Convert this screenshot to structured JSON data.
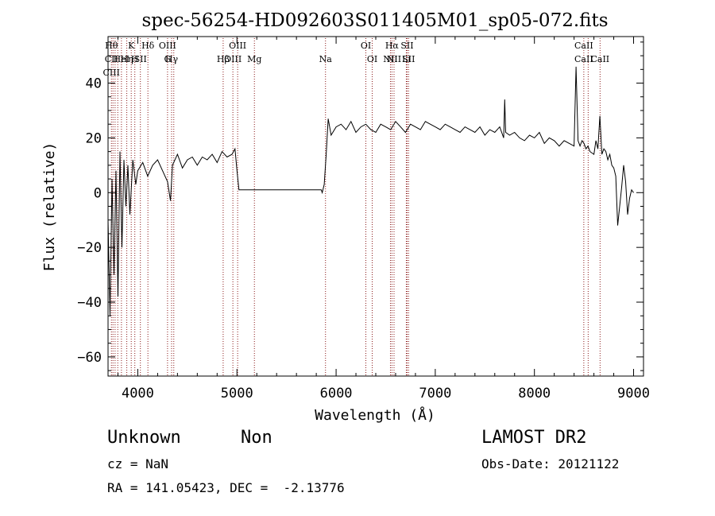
{
  "chart_data": {
    "type": "line",
    "title": "spec-56254-HD092603S011405M01_sp05-072.fits",
    "xlabel": "Wavelength (Å)",
    "ylabel": "Flux (relative)",
    "xlim": [
      3700,
      9100
    ],
    "ylim": [
      -67,
      57
    ],
    "xticks": [
      4000,
      5000,
      6000,
      7000,
      8000,
      9000
    ],
    "yticks": [
      -60,
      -40,
      -20,
      0,
      20,
      40
    ],
    "xtick_labels": [
      "4000",
      "5000",
      "6000",
      "7000",
      "8000",
      "9000"
    ],
    "ytick_labels": [
      "−60",
      "−40",
      "−20",
      "0",
      "20",
      "40"
    ],
    "grid": false,
    "line_color": "#000000",
    "marker_color": "#8b1a1a",
    "series": [
      {
        "x": [
          3700,
          3720,
          3740,
          3760,
          3780,
          3800,
          3820,
          3840,
          3860,
          3880,
          3900,
          3920,
          3950,
          3980,
          4000,
          4050,
          4100,
          4150,
          4200,
          4250,
          4300,
          4330,
          4350,
          4400,
          4450,
          4500,
          4550,
          4600,
          4650,
          4700,
          4750,
          4800,
          4850,
          4900,
          4950,
          4980,
          5000,
          5020,
          5100,
          5300,
          5500,
          5700,
          5850,
          5860,
          5880,
          5900,
          5920,
          5950,
          6000,
          6050,
          6100,
          6150,
          6200,
          6250,
          6300,
          6350,
          6400,
          6450,
          6500,
          6550,
          6600,
          6650,
          6700,
          6750,
          6800,
          6850,
          6900,
          6950,
          7000,
          7050,
          7100,
          7150,
          7200,
          7250,
          7300,
          7350,
          7400,
          7450,
          7500,
          7550,
          7600,
          7650,
          7690,
          7700,
          7710,
          7750,
          7800,
          7850,
          7900,
          7950,
          8000,
          8050,
          8100,
          8150,
          8200,
          8250,
          8300,
          8350,
          8400,
          8420,
          8440,
          8450,
          8460,
          8480,
          8500,
          8520,
          8540,
          8560,
          8600,
          8620,
          8640,
          8660,
          8680,
          8700,
          8720,
          8740,
          8760,
          8780,
          8800,
          8820,
          8840,
          8860,
          8880,
          8900,
          8920,
          8940,
          8960,
          8980,
          9000
        ],
        "y": [
          -10,
          -45,
          5,
          -30,
          8,
          -38,
          15,
          -20,
          12,
          -5,
          10,
          -8,
          12,
          3,
          8,
          11,
          6,
          10,
          12,
          8,
          4,
          -3,
          10,
          14,
          9,
          12,
          13,
          10,
          13,
          12,
          14,
          11,
          15,
          13,
          14,
          16,
          8,
          1,
          1,
          1,
          1,
          1,
          1,
          0,
          3,
          14,
          27,
          21,
          24,
          25,
          23,
          26,
          22,
          24,
          25,
          23,
          22,
          25,
          24,
          23,
          26,
          24,
          22,
          25,
          24,
          23,
          26,
          25,
          24,
          23,
          25,
          24,
          23,
          22,
          24,
          23,
          22,
          24,
          21,
          23,
          22,
          24,
          20,
          34,
          22,
          21,
          22,
          20,
          19,
          21,
          20,
          22,
          18,
          20,
          19,
          17,
          19,
          18,
          17,
          46,
          19,
          18,
          17,
          19,
          18,
          16,
          17,
          15,
          14,
          19,
          16,
          28,
          14,
          16,
          15,
          12,
          14,
          10,
          9,
          6,
          -12,
          -5,
          2,
          10,
          4,
          -8,
          -2,
          1,
          0
        ]
      }
    ],
    "lines": [
      {
        "w": 3734,
        "top": [
          "Hθ"
        ],
        "bottom": [
          "CII",
          "CIII"
        ]
      },
      {
        "w": 3750,
        "top": [],
        "bottom": []
      },
      {
        "w": 3771,
        "top": [],
        "bottom": []
      },
      {
        "w": 3798,
        "top": [],
        "bottom": []
      },
      {
        "w": 3835,
        "top": [],
        "bottom": [
          "HeI"
        ]
      },
      {
        "w": 3889,
        "top": [],
        "bottom": [
          "Hη"
        ]
      },
      {
        "w": 3934,
        "top": [
          "K"
        ],
        "bottom": []
      },
      {
        "w": 3970,
        "top": [],
        "bottom": [
          "H"
        ]
      },
      {
        "w": 4026,
        "top": [],
        "bottom": [
          "SII"
        ]
      },
      {
        "w": 4102,
        "top": [
          "Hδ"
        ],
        "bottom": []
      },
      {
        "w": 4300,
        "top": [
          "OIII"
        ],
        "bottom": [
          "G"
        ]
      },
      {
        "w": 4341,
        "top": [],
        "bottom": [
          "Hγ"
        ]
      },
      {
        "w": 4363,
        "top": [],
        "bottom": []
      },
      {
        "w": 4861,
        "top": [],
        "bottom": [
          "Hβ"
        ]
      },
      {
        "w": 4959,
        "top": [],
        "bottom": [
          "OIII"
        ]
      },
      {
        "w": 5007,
        "top": [
          "OIII"
        ],
        "bottom": []
      },
      {
        "w": 5176,
        "top": [],
        "bottom": [
          "Mg"
        ]
      },
      {
        "w": 5893,
        "top": [],
        "bottom": [
          "Na"
        ]
      },
      {
        "w": 6300,
        "top": [
          "OI"
        ],
        "bottom": []
      },
      {
        "w": 6364,
        "top": [],
        "bottom": [
          "OI"
        ]
      },
      {
        "w": 6548,
        "top": [],
        "bottom": [
          "NII"
        ]
      },
      {
        "w": 6563,
        "top": [
          "Hα"
        ],
        "bottom": []
      },
      {
        "w": 6584,
        "top": [],
        "bottom": [
          "NII"
        ]
      },
      {
        "w": 6708,
        "top": [],
        "bottom": [
          "Li"
        ]
      },
      {
        "w": 6716,
        "top": [
          "SII"
        ],
        "bottom": []
      },
      {
        "w": 6731,
        "top": [],
        "bottom": [
          "SII"
        ]
      },
      {
        "w": 8498,
        "top": [
          "CaII"
        ],
        "bottom": [
          "CaII"
        ]
      },
      {
        "w": 8542,
        "top": [],
        "bottom": []
      },
      {
        "w": 8662,
        "top": [],
        "bottom": [
          "CaII"
        ]
      }
    ]
  },
  "info": {
    "object_class": "Unknown",
    "object_subclass": "Non",
    "survey": "LAMOST DR2",
    "cz": "cz = NaN",
    "obs_date": "Obs-Date: 20121122",
    "coords": "RA = 141.05423, DEC =  -2.13776"
  }
}
